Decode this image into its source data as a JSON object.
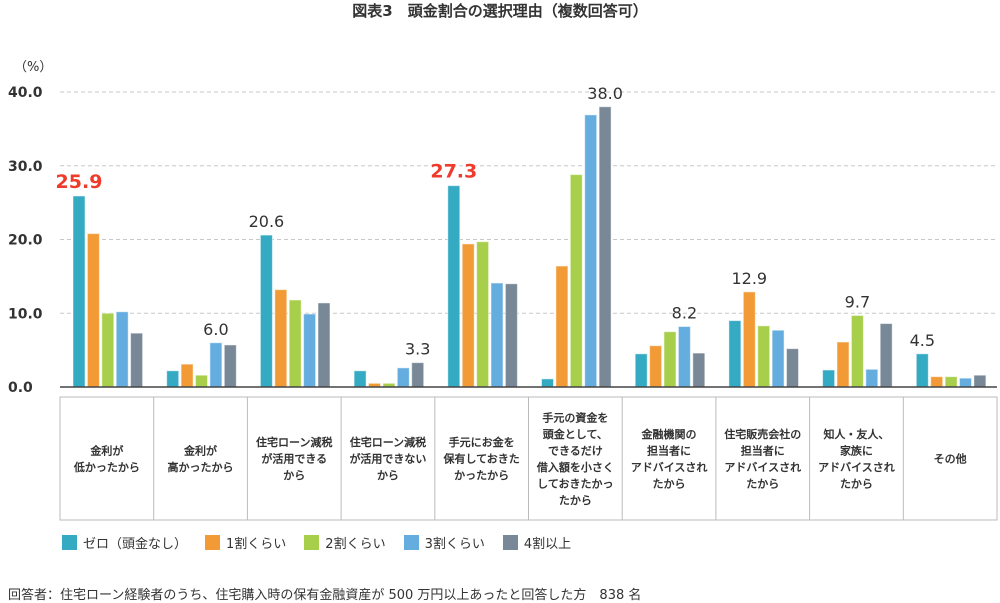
{
  "chart_data": {
    "type": "bar",
    "title": "図表3　頭金割合の選択理由（複数回答可）",
    "ylabel": "（%）",
    "ylim": [
      0,
      40
    ],
    "yticks": [
      "0.0",
      "10.0",
      "20.0",
      "30.0",
      "40.0"
    ],
    "grid": true,
    "legend_position": "bottom",
    "categories": [
      [
        "金利が",
        "低かったから"
      ],
      [
        "金利が",
        "高かったから"
      ],
      [
        "住宅ローン減税",
        "が活用できる",
        "から"
      ],
      [
        "住宅ローン減税",
        "が活用できない",
        "から"
      ],
      [
        "手元にお金を",
        "保有しておきた",
        "かったから"
      ],
      [
        "手元の資金を",
        "頭金として、",
        "できるだけ",
        "借入額を小さく",
        "しておきたかっ",
        "たから"
      ],
      [
        "金融機関の",
        "担当者に",
        "アドバイスされ",
        "たから"
      ],
      [
        "住宅販売会社の",
        "担当者に",
        "アドバイスされ",
        "たから"
      ],
      [
        "知人・友人、",
        "家族に",
        "アドバイスされ",
        "たから"
      ],
      [
        "その他"
      ]
    ],
    "series": [
      {
        "name": "ゼロ（頭金なし）",
        "color": "#34aac3",
        "values": [
          25.9,
          2.2,
          20.6,
          2.2,
          27.3,
          1.1,
          4.5,
          9.0,
          2.3,
          4.5
        ]
      },
      {
        "name": "1割くらい",
        "color": "#f29b36",
        "values": [
          20.8,
          3.1,
          13.2,
          0.5,
          19.4,
          16.4,
          5.6,
          12.9,
          6.1,
          1.4
        ]
      },
      {
        "name": "2割くらい",
        "color": "#a7cf4c",
        "values": [
          10.0,
          1.6,
          11.8,
          0.5,
          19.7,
          28.8,
          7.5,
          8.3,
          9.7,
          1.4
        ]
      },
      {
        "name": "3割くらい",
        "color": "#65addf",
        "values": [
          10.2,
          6.0,
          9.9,
          2.6,
          14.1,
          36.9,
          8.2,
          7.7,
          2.4,
          1.2
        ]
      },
      {
        "name": "4割以上",
        "color": "#788896",
        "values": [
          7.3,
          5.7,
          11.4,
          3.3,
          14.0,
          38.0,
          4.6,
          5.2,
          8.6,
          1.6
        ]
      }
    ],
    "data_labels": [
      {
        "category": 0,
        "series": 0,
        "text": "25.9",
        "color": "#ee3b2b"
      },
      {
        "category": 1,
        "series": 3,
        "text": "6.0",
        "color": "#333333"
      },
      {
        "category": 2,
        "series": 0,
        "text": "20.6",
        "color": "#333333"
      },
      {
        "category": 3,
        "series": 4,
        "text": "3.3",
        "color": "#333333"
      },
      {
        "category": 4,
        "series": 0,
        "text": "27.3",
        "color": "#ee3b2b"
      },
      {
        "category": 5,
        "series": 4,
        "text": "38.0",
        "color": "#333333"
      },
      {
        "category": 6,
        "series": 3,
        "text": "8.2",
        "color": "#333333"
      },
      {
        "category": 7,
        "series": 1,
        "text": "12.9",
        "color": "#333333"
      },
      {
        "category": 8,
        "series": 2,
        "text": "9.7",
        "color": "#333333"
      },
      {
        "category": 9,
        "series": 0,
        "text": "4.5",
        "color": "#333333"
      }
    ]
  },
  "footnote": "回答者：住宅ローン経験者のうち、住宅購入時の保有金融資産が 500 万円以上あったと回答した方　838 名"
}
